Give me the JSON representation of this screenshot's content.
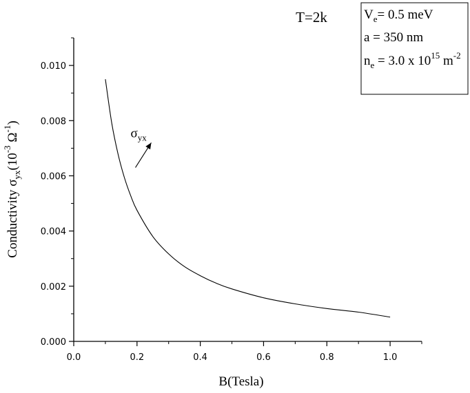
{
  "chart_data": {
    "type": "line",
    "title": "T=2k",
    "xlabel": "B(Tesla)",
    "ylabel": {
      "prefix": "Conductivity σ",
      "sub": "yx",
      "unit_open": "(10",
      "unit_exp": "-3",
      "unit_mid": " Ω",
      "unit_exp2": "-1",
      "unit_close": ")"
    },
    "xlim": [
      0.0,
      1.1
    ],
    "ylim": [
      0.0,
      0.011
    ],
    "x_ticks": [
      "0.0",
      "0.2",
      "0.4",
      "0.6",
      "0.8",
      "1.0"
    ],
    "x_tick_values": [
      0.0,
      0.2,
      0.4,
      0.6,
      0.8,
      1.0
    ],
    "y_ticks": [
      "0.000",
      "0.002",
      "0.004",
      "0.006",
      "0.008",
      "0.010"
    ],
    "y_tick_values": [
      0.0,
      0.002,
      0.004,
      0.006,
      0.008,
      0.01
    ],
    "grid": false,
    "series": [
      {
        "label": {
          "base": "σ",
          "sub": "yx"
        },
        "x": [
          0.1,
          0.12,
          0.14,
          0.16,
          0.18,
          0.2,
          0.25,
          0.3,
          0.35,
          0.4,
          0.45,
          0.5,
          0.6,
          0.7,
          0.8,
          0.9,
          1.0
        ],
        "y": [
          0.0095,
          0.00792,
          0.00679,
          0.00594,
          0.00528,
          0.00475,
          0.0038,
          0.00317,
          0.00271,
          0.00238,
          0.00211,
          0.0019,
          0.00158,
          0.00136,
          0.00119,
          0.00106,
          0.00088
        ]
      }
    ],
    "annotation": {
      "label_base": "σ",
      "label_sub": "yx",
      "arrow_from": [
        0.195,
        0.0063
      ],
      "arrow_to": [
        0.245,
        0.0072
      ],
      "text_at": [
        0.245,
        0.0074
      ]
    },
    "legend_box": {
      "placement": "top-right",
      "lines": [
        {
          "pre": "V",
          "sub": "e",
          "post": "= 0.5 meV"
        },
        {
          "pre": "a = 350 nm",
          "sub": "",
          "post": ""
        },
        {
          "pre": "n",
          "sub": "e",
          "mid": " = 3.0 x 10",
          "sup": "15",
          "post": " m",
          "sup2": "-2"
        }
      ]
    }
  }
}
